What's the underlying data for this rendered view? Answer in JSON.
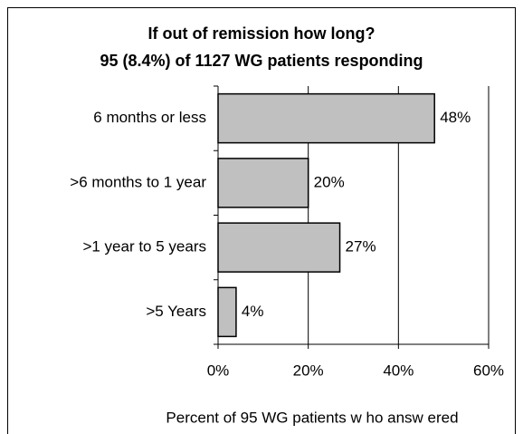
{
  "chart_data": {
    "type": "bar",
    "orientation": "horizontal",
    "title": "If out of remission how long?",
    "subtitle": "95 (8.4%) of 1127 WG patients responding",
    "categories": [
      "6 months or less",
      ">6 months to 1 year",
      ">1 year to 5 years",
      ">5 Years"
    ],
    "values": [
      48,
      20,
      27,
      4
    ],
    "value_labels": [
      "48%",
      "20%",
      "27%",
      "4%"
    ],
    "color": "#c0c0c0",
    "xlim": [
      0,
      60
    ],
    "xticks": [
      {
        "value": 0,
        "label": "0%"
      },
      {
        "value": 20,
        "label": "20%"
      },
      {
        "value": 40,
        "label": "40%"
      },
      {
        "value": 60,
        "label": "60%"
      }
    ],
    "xlabel": "Percent of 95 WG patients w ho answ ered",
    "grid": true
  }
}
